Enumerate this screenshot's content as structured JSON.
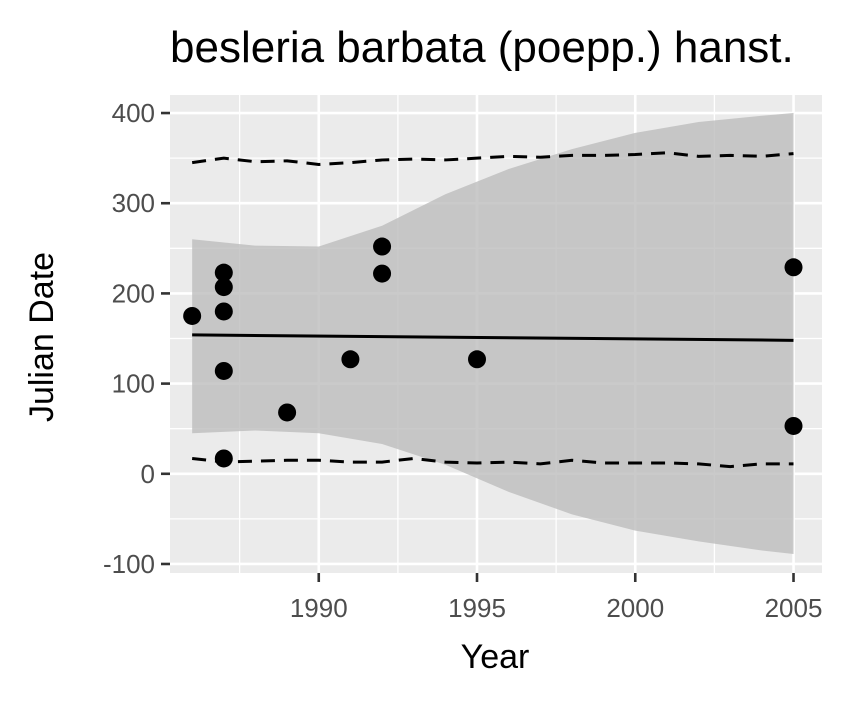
{
  "chart_data": {
    "type": "scatter",
    "title": "besleria barbata (poepp.) hanst.",
    "xlabel": "Year",
    "ylabel": "Julian Date",
    "xlim": [
      1985.3,
      2005.9
    ],
    "ylim": [
      -110,
      420
    ],
    "x_ticks": [
      1990,
      1995,
      2000,
      2005
    ],
    "y_ticks": [
      -100,
      0,
      100,
      200,
      300,
      400
    ],
    "grid": true,
    "legend": "none",
    "colors": {
      "panel_background": "#ebebeb",
      "grid": "#ffffff",
      "ribbon": "#bdbdbd",
      "points": "#000000",
      "lines": "#000000"
    },
    "points": [
      {
        "x": 1986,
        "y": 175
      },
      {
        "x": 1987,
        "y": 223
      },
      {
        "x": 1987,
        "y": 207
      },
      {
        "x": 1987,
        "y": 180
      },
      {
        "x": 1987,
        "y": 114
      },
      {
        "x": 1987,
        "y": 17
      },
      {
        "x": 1989,
        "y": 68
      },
      {
        "x": 1991,
        "y": 127
      },
      {
        "x": 1992,
        "y": 252
      },
      {
        "x": 1992,
        "y": 222
      },
      {
        "x": 1995,
        "y": 127
      },
      {
        "x": 2005,
        "y": 229
      },
      {
        "x": 2005,
        "y": 53
      }
    ],
    "trend_line": {
      "x": [
        1986,
        2005
      ],
      "y": [
        154,
        148
      ]
    },
    "confidence_band": {
      "x": [
        1986,
        1988,
        1990,
        1992,
        1994,
        1996,
        1998,
        2000,
        2002,
        2004,
        2005
      ],
      "upper": [
        260,
        253,
        252,
        275,
        310,
        338,
        360,
        378,
        390,
        397,
        400
      ],
      "lower": [
        45,
        48,
        45,
        33,
        10,
        -20,
        -45,
        -63,
        -75,
        -85,
        -89
      ]
    },
    "upper_quantile": {
      "x": [
        1986,
        1987,
        1988,
        1989,
        1990,
        1991,
        1992,
        1993,
        1994,
        1995,
        1996,
        1997,
        1998,
        1999,
        2000,
        2001,
        2002,
        2003,
        2004,
        2005
      ],
      "y": [
        345,
        350,
        346,
        347,
        343,
        345,
        348,
        349,
        348,
        350,
        352,
        351,
        353,
        353,
        354,
        356,
        352,
        353,
        352,
        355
      ]
    },
    "lower_quantile": {
      "x": [
        1986,
        1987,
        1988,
        1989,
        1990,
        1991,
        1992,
        1993,
        1994,
        1995,
        1996,
        1997,
        1998,
        1999,
        2000,
        2001,
        2002,
        2003,
        2004,
        2005
      ],
      "y": [
        17,
        13,
        14,
        15,
        15,
        13,
        13,
        17,
        13,
        12,
        13,
        11,
        15,
        12,
        12,
        12,
        11,
        8,
        11,
        11
      ]
    }
  }
}
